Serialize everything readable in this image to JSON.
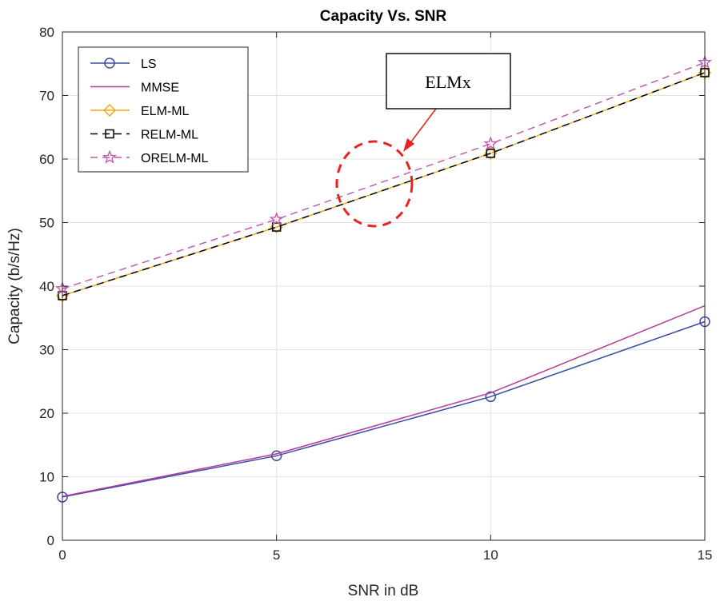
{
  "chart_data": {
    "type": "line",
    "title": "Capacity Vs. SNR",
    "xlabel": "SNR in dB",
    "ylabel": "Capacity (b/s/Hz)",
    "xlim": [
      0,
      15
    ],
    "ylim": [
      0,
      80
    ],
    "grid": true,
    "x": [
      0,
      5,
      10,
      15
    ],
    "xticks": [
      0,
      5,
      10,
      15
    ],
    "yticks": [
      0,
      10,
      20,
      30,
      40,
      50,
      60,
      70,
      80
    ],
    "legend_position": "top-left",
    "series": [
      {
        "name": "LS",
        "values": [
          6.8,
          13.3,
          22.6,
          34.4
        ],
        "color": "#3c4ba5",
        "dash": "solid",
        "marker": "circle"
      },
      {
        "name": "MMSE",
        "values": [
          6.9,
          13.6,
          23.2,
          36.9
        ],
        "color": "#b53c9a",
        "dash": "solid",
        "marker": "none"
      },
      {
        "name": "ELM-ML",
        "values": [
          38.5,
          49.3,
          60.9,
          73.6
        ],
        "color": "#f0a81c",
        "dash": "solid",
        "marker": "diamond"
      },
      {
        "name": "RELM-ML",
        "values": [
          38.5,
          49.3,
          60.9,
          73.6
        ],
        "color": "#000000",
        "dash": "dashed",
        "marker": "square"
      },
      {
        "name": "ORELM-ML",
        "values": [
          39.6,
          50.5,
          62.4,
          75.2
        ],
        "color": "#c15ab2",
        "dash": "dashed",
        "marker": "star"
      }
    ],
    "annotations": [
      {
        "text": "ELMx",
        "type": "boxed-label-with-arrow",
        "target_x": 7.5,
        "target_y": 55,
        "arrow_color": "#e8231f",
        "ellipse_color": "#e8231f"
      }
    ]
  }
}
